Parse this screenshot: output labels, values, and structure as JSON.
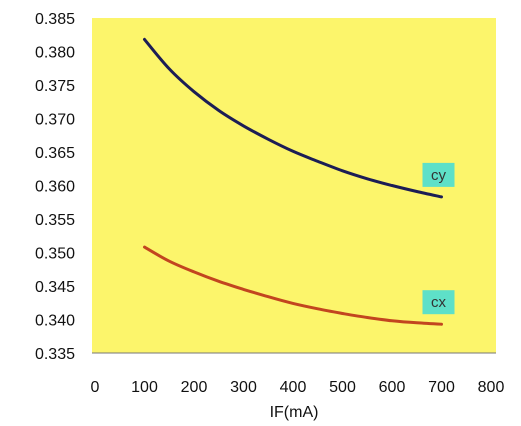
{
  "chart_data": {
    "type": "line",
    "xlabel": "IF(mA)",
    "ylabel": "",
    "xlim": [
      0,
      800
    ],
    "ylim": [
      0.335,
      0.385
    ],
    "x_ticks": [
      "0",
      "100",
      "200",
      "300",
      "400",
      "500",
      "600",
      "700",
      "800"
    ],
    "y_ticks": [
      "0.335",
      "0.340",
      "0.345",
      "0.350",
      "0.355",
      "0.360",
      "0.365",
      "0.370",
      "0.375",
      "0.380",
      "0.385"
    ],
    "grid": false,
    "plot_background": "#fcf56b",
    "label_background": "#5ee0c8",
    "series": [
      {
        "name": "cy",
        "color": "#1c1d55",
        "x": [
          100,
          150,
          200,
          250,
          300,
          350,
          400,
          450,
          500,
          550,
          600,
          650,
          700
        ],
        "y": [
          0.3818,
          0.3774,
          0.374,
          0.3712,
          0.3689,
          0.3669,
          0.3651,
          0.3636,
          0.3622,
          0.361,
          0.36,
          0.3591,
          0.3583
        ]
      },
      {
        "name": "cx",
        "color": "#c2451f",
        "x": [
          100,
          150,
          200,
          250,
          300,
          350,
          400,
          450,
          500,
          550,
          600,
          650,
          700
        ],
        "y": [
          0.3508,
          0.3487,
          0.3471,
          0.3457,
          0.3445,
          0.3434,
          0.3424,
          0.3416,
          0.3409,
          0.3403,
          0.3398,
          0.3395,
          0.3393
        ]
      }
    ]
  }
}
